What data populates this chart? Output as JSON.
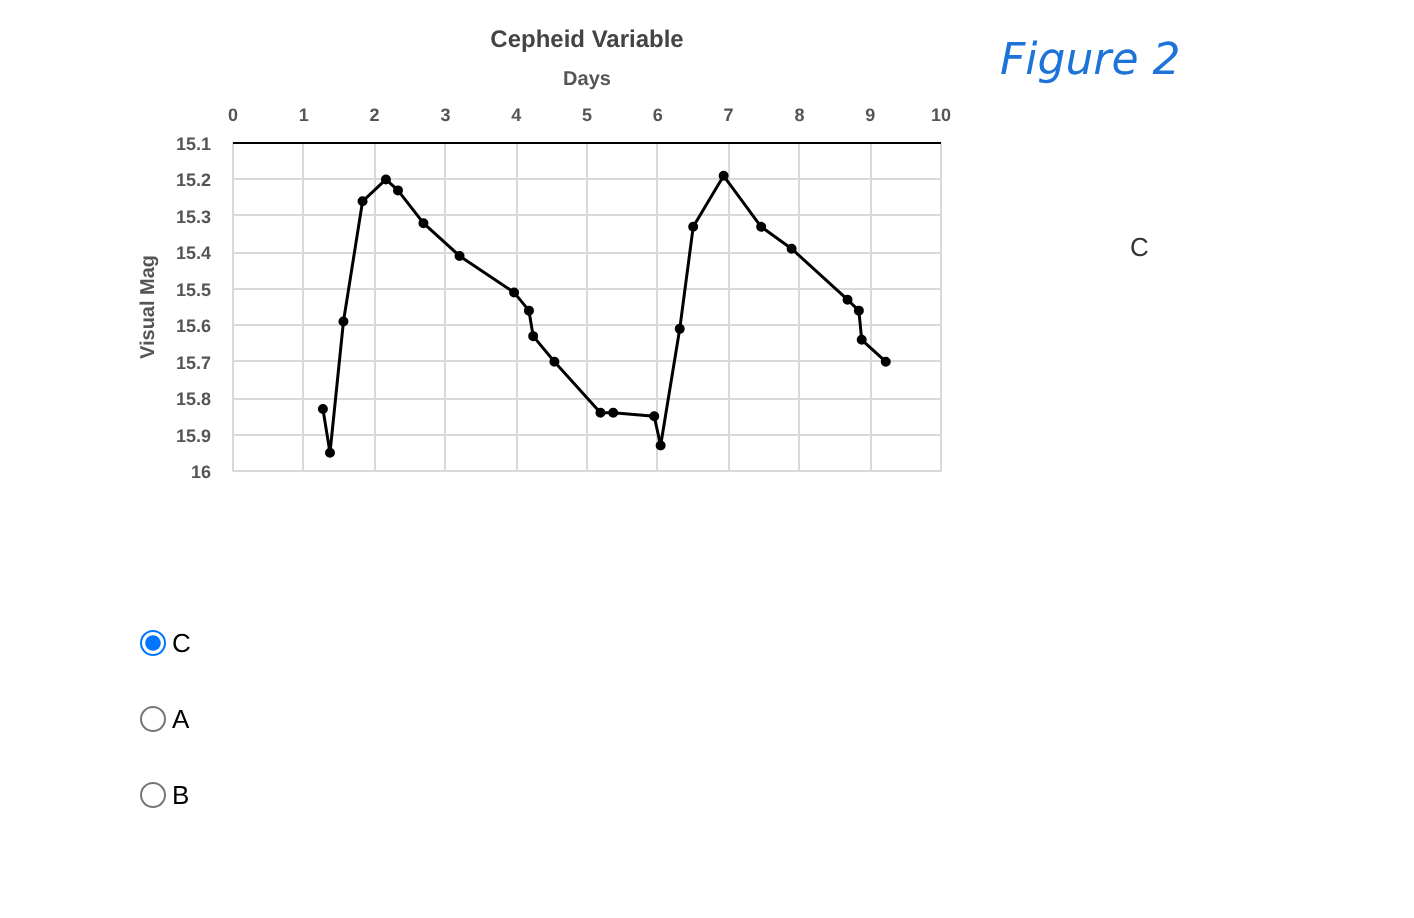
{
  "chart_data": {
    "type": "line",
    "title": "Cepheid Variable",
    "xlabel": "Days",
    "ylabel": "Visual Mag",
    "x": [
      1.27,
      1.37,
      1.56,
      1.83,
      2.16,
      2.33,
      2.69,
      3.2,
      3.97,
      4.18,
      4.24,
      4.54,
      5.19,
      5.37,
      5.95,
      6.04,
      6.31,
      6.5,
      6.93,
      7.46,
      7.89,
      8.68,
      8.84,
      8.88,
      9.22
    ],
    "series": [
      {
        "color": "#000000",
        "values": [
          15.83,
          15.95,
          15.59,
          15.26,
          15.2,
          15.23,
          15.32,
          15.41,
          15.51,
          15.56,
          15.63,
          15.7,
          15.84,
          15.84,
          15.85,
          15.93,
          15.61,
          15.33,
          15.19,
          15.33,
          15.39,
          15.53,
          15.56,
          15.64,
          15.7
        ]
      }
    ],
    "xlim": [
      0,
      10
    ],
    "xticks": [
      0,
      1,
      2,
      3,
      4,
      5,
      6,
      7,
      8,
      9,
      10
    ],
    "ylim": [
      16,
      15.1
    ],
    "yticks": [
      {
        "value": 15.1,
        "label": "15.1"
      },
      {
        "value": 15.2,
        "label": "15.2"
      },
      {
        "value": 15.3,
        "label": "15.3"
      },
      {
        "value": 15.4,
        "label": "15.4"
      },
      {
        "value": 15.5,
        "label": "15.5"
      },
      {
        "value": 15.6,
        "label": "15.6"
      },
      {
        "value": 15.7,
        "label": "15.7"
      },
      {
        "value": 15.8,
        "label": "15.8"
      },
      {
        "value": 15.9,
        "label": "15.9"
      },
      {
        "value": 16,
        "label": "16"
      }
    ],
    "grid": true,
    "marker": "circle",
    "line_style": "solid",
    "annotations": [
      "Figure 2",
      "C",
      "C",
      "A",
      "B"
    ]
  }
}
